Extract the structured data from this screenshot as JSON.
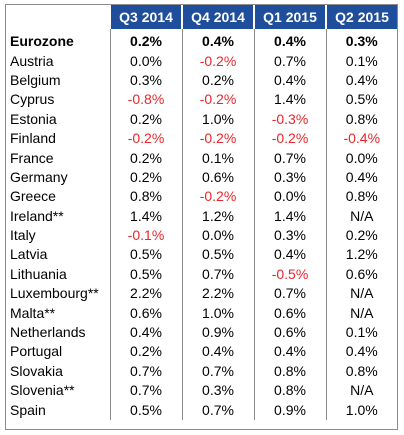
{
  "table": {
    "columns": [
      "Q3 2014",
      "Q4 2014",
      "Q1 2015",
      "Q2 2015"
    ],
    "negative_color": "#e8262b",
    "header_color": "#1f4e9c",
    "rows": [
      {
        "country": "Eurozone",
        "values": [
          "0.2%",
          "0.4%",
          "0.4%",
          "0.3%"
        ],
        "bold": true
      },
      {
        "country": "Austria",
        "values": [
          "0.0%",
          "-0.2%",
          "0.7%",
          "0.1%"
        ]
      },
      {
        "country": "Belgium",
        "values": [
          "0.3%",
          "0.2%",
          "0.4%",
          "0.4%"
        ]
      },
      {
        "country": "Cyprus",
        "values": [
          "-0.8%",
          "-0.2%",
          "1.4%",
          "0.5%"
        ]
      },
      {
        "country": "Estonia",
        "values": [
          "0.2%",
          "1.0%",
          "-0.3%",
          "0.8%"
        ]
      },
      {
        "country": "Finland",
        "values": [
          "-0.2%",
          "-0.2%",
          "-0.2%",
          "-0.4%"
        ]
      },
      {
        "country": "France",
        "values": [
          "0.2%",
          "0.1%",
          "0.7%",
          "0.0%"
        ]
      },
      {
        "country": "Germany",
        "values": [
          "0.2%",
          "0.6%",
          "0.3%",
          "0.4%"
        ]
      },
      {
        "country": "Greece",
        "values": [
          "0.8%",
          "-0.2%",
          "0.0%",
          "0.8%"
        ]
      },
      {
        "country": "Ireland**",
        "values": [
          "1.4%",
          "1.2%",
          "1.4%",
          "N/A"
        ]
      },
      {
        "country": "Italy",
        "values": [
          "-0.1%",
          "0.0%",
          "0.3%",
          "0.2%"
        ]
      },
      {
        "country": "Latvia",
        "values": [
          "0.5%",
          "0.5%",
          "0.4%",
          "1.2%"
        ]
      },
      {
        "country": "Lithuania",
        "values": [
          "0.5%",
          "0.7%",
          "-0.5%",
          "0.6%"
        ]
      },
      {
        "country": "Luxembourg**",
        "values": [
          "2.2%",
          "2.2%",
          "0.7%",
          "N/A"
        ]
      },
      {
        "country": "Malta**",
        "values": [
          "0.6%",
          "1.0%",
          "0.6%",
          "N/A"
        ]
      },
      {
        "country": "Netherlands",
        "values": [
          "0.4%",
          "0.9%",
          "0.6%",
          "0.1%"
        ]
      },
      {
        "country": "Portugal",
        "values": [
          "0.2%",
          "0.4%",
          "0.4%",
          "0.4%"
        ]
      },
      {
        "country": "Slovakia",
        "values": [
          "0.7%",
          "0.7%",
          "0.8%",
          "0.8%"
        ]
      },
      {
        "country": "Slovenia**",
        "values": [
          "0.7%",
          "0.3%",
          "0.8%",
          "N/A"
        ]
      },
      {
        "country": "Spain",
        "values": [
          "0.5%",
          "0.7%",
          "0.9%",
          "1.0%"
        ]
      }
    ]
  }
}
